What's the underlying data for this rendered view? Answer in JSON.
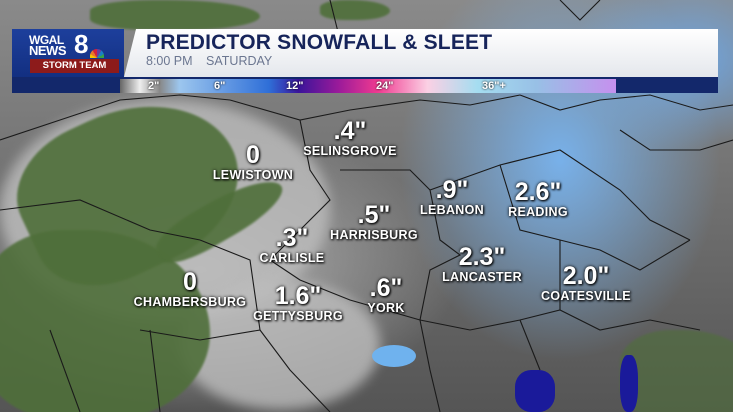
{
  "logo": {
    "line1": "WGAL",
    "line2": "NEWS",
    "number": "8",
    "team": "STORM TEAM"
  },
  "header": {
    "title": "PREDICTOR SNOWFALL & SLEET",
    "time": "8:00 PM",
    "day": "SATURDAY"
  },
  "legend": {
    "ticks": [
      "2\"",
      "6\"",
      "12\"",
      "24\"",
      "36\"+"
    ],
    "colors": [
      "#888888",
      "#2f6fd8",
      "#9a1a9a",
      "#f03a90",
      "#a5ddf0",
      "#c690ee"
    ]
  },
  "locations": [
    {
      "name": "LEWISTOWN",
      "amount": "0"
    },
    {
      "name": "SELINSGROVE",
      "amount": ".4\""
    },
    {
      "name": "LEBANON",
      "amount": ".9\""
    },
    {
      "name": "READING",
      "amount": "2.6\""
    },
    {
      "name": "HARRISBURG",
      "amount": ".5\""
    },
    {
      "name": "CARLISLE",
      "amount": ".3\""
    },
    {
      "name": "LANCASTER",
      "amount": "2.3\""
    },
    {
      "name": "COATESVILLE",
      "amount": "2.0\""
    },
    {
      "name": "CHAMBERSBURG",
      "amount": "0"
    },
    {
      "name": "GETTYSBURG",
      "amount": "1.6\""
    },
    {
      "name": "YORK",
      "amount": ".6\""
    }
  ]
}
